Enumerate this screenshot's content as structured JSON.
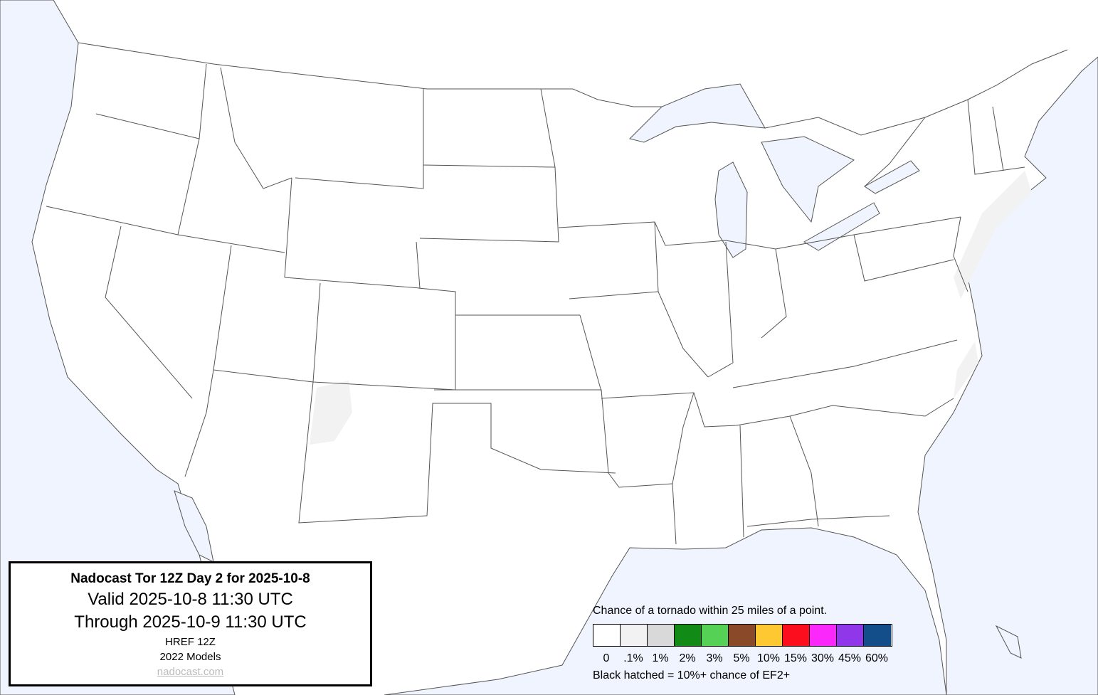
{
  "title_box": {
    "title": "Nadocast Tor 12Z Day 2 for 2025-10-8",
    "valid": "Valid 2025-10-8 11:30 UTC",
    "through": "Through 2025-10-9 11:30 UTC",
    "model": "HREF 12Z",
    "models_version": "2022 Models",
    "link": "nadocast.com"
  },
  "legend": {
    "caption": "Chance of a tornado within 25 miles of a point.",
    "bins": [
      {
        "label": "0",
        "color": "#ffffff"
      },
      {
        "label": ".1%",
        "color": "#f2f2f2"
      },
      {
        "label": "1%",
        "color": "#d9d9d9"
      },
      {
        "label": "2%",
        "color": "#118a16"
      },
      {
        "label": "3%",
        "color": "#55d155"
      },
      {
        "label": "5%",
        "color": "#8a4a2a"
      },
      {
        "label": "10%",
        "color": "#fec832"
      },
      {
        "label": "15%",
        "color": "#fc0e1e"
      },
      {
        "label": "30%",
        "color": "#fb28fb"
      },
      {
        "label": "45%",
        "color": "#9137ea"
      },
      {
        "label": "60%",
        "color": "#134e8a"
      }
    ],
    "note": "Black hatched = 10%+ chance of EF2+"
  },
  "map": {
    "water_color": "#eff4fe",
    "land_color": "#ffffff",
    "border_color": "#555555",
    "forecast_areas": [
      {
        "region": "eastern New Mexico",
        "bin": ".1%"
      },
      {
        "region": "Mid-Atlantic / Northeast coast",
        "bin": ".1%"
      },
      {
        "region": "Carolina coast",
        "bin": ".1%"
      }
    ]
  }
}
